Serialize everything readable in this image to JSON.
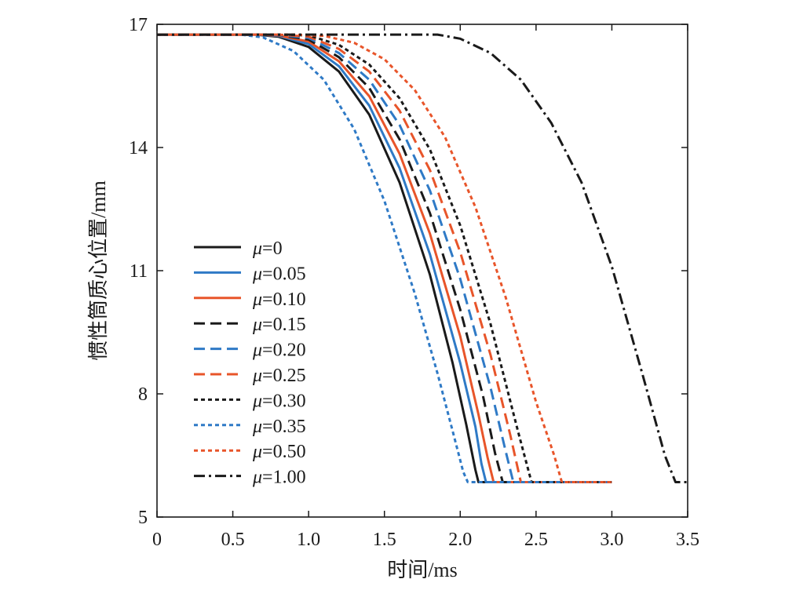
{
  "chart_data": {
    "type": "line",
    "title": "",
    "xlabel": "时间/ms",
    "ylabel": "惯性筒质心位置/mm",
    "xlim": [
      0,
      3.5
    ],
    "ylim": [
      5,
      17
    ],
    "xticks": [
      0,
      0.5,
      1.0,
      1.5,
      2.0,
      2.5,
      3.0,
      3.5
    ],
    "xtick_labels": [
      "0",
      "0.5",
      "1.0",
      "1.5",
      "2.0",
      "2.5",
      "3.0",
      "3.5"
    ],
    "yticks": [
      5,
      8,
      11,
      14,
      17
    ],
    "ytick_labels": [
      "5",
      "8",
      "11",
      "14",
      "17"
    ],
    "grid": false,
    "legend_position": "lower-left",
    "legend_prefix": "μ",
    "series": [
      {
        "name": "=0",
        "color": "#1a1a1a",
        "dash": "solid",
        "x": [
          0,
          0.65,
          0.8,
          1.0,
          1.2,
          1.4,
          1.6,
          1.8,
          1.95,
          2.04,
          2.1,
          2.12,
          3.0
        ],
        "y": [
          16.75,
          16.75,
          16.7,
          16.45,
          15.85,
          14.8,
          13.15,
          10.9,
          8.75,
          7.25,
          6.15,
          5.85,
          5.85
        ]
      },
      {
        "name": "=0.05",
        "color": "#2f7ac6",
        "dash": "solid",
        "x": [
          0,
          0.65,
          0.8,
          1.0,
          1.2,
          1.4,
          1.6,
          1.8,
          2.0,
          2.1,
          2.14,
          2.17,
          3.0
        ],
        "y": [
          16.75,
          16.75,
          16.72,
          16.52,
          15.98,
          15.02,
          13.5,
          11.4,
          8.75,
          7.2,
          6.3,
          5.85,
          5.85
        ]
      },
      {
        "name": "=0.10",
        "color": "#e8552a",
        "dash": "solid",
        "x": [
          0,
          0.65,
          0.8,
          1.0,
          1.2,
          1.4,
          1.6,
          1.8,
          2.0,
          2.12,
          2.18,
          2.22,
          3.0
        ],
        "y": [
          16.75,
          16.75,
          16.73,
          16.58,
          16.1,
          15.25,
          13.85,
          11.9,
          9.4,
          7.5,
          6.45,
          5.85,
          5.85
        ]
      },
      {
        "name": "=0.15",
        "color": "#1a1a1a",
        "dash": "longdash",
        "x": [
          0,
          0.65,
          0.8,
          1.0,
          1.2,
          1.4,
          1.6,
          1.8,
          2.0,
          2.15,
          2.23,
          2.28,
          3.0
        ],
        "y": [
          16.75,
          16.75,
          16.74,
          16.63,
          16.2,
          15.45,
          14.2,
          12.4,
          10.05,
          7.95,
          6.55,
          5.85,
          5.85
        ]
      },
      {
        "name": "=0.20",
        "color": "#2f7ac6",
        "dash": "longdash",
        "x": [
          0,
          0.65,
          0.8,
          1.0,
          1.2,
          1.4,
          1.6,
          1.8,
          2.0,
          2.2,
          2.3,
          2.35,
          3.0
        ],
        "y": [
          16.75,
          16.75,
          16.74,
          16.67,
          16.3,
          15.65,
          14.55,
          12.95,
          10.8,
          8.15,
          6.6,
          5.85,
          5.85
        ]
      },
      {
        "name": "=0.25",
        "color": "#e8552a",
        "dash": "longdash",
        "x": [
          0,
          0.65,
          0.8,
          1.0,
          1.2,
          1.4,
          1.6,
          1.8,
          2.0,
          2.2,
          2.33,
          2.4,
          3.0
        ],
        "y": [
          16.75,
          16.75,
          16.75,
          16.7,
          16.4,
          15.85,
          14.9,
          13.45,
          11.45,
          8.95,
          7.0,
          5.85,
          5.85
        ]
      },
      {
        "name": "=0.30",
        "color": "#1a1a1a",
        "dash": "shortdash",
        "x": [
          0,
          0.65,
          0.8,
          1.0,
          1.2,
          1.4,
          1.6,
          1.8,
          2.0,
          2.2,
          2.38,
          2.47,
          3.0
        ],
        "y": [
          16.75,
          16.75,
          16.75,
          16.73,
          16.5,
          16.02,
          15.2,
          13.95,
          12.1,
          9.7,
          7.1,
          5.85,
          5.85
        ]
      },
      {
        "name": "=0.35",
        "color": "#2f7ac6",
        "dash": "shortdash",
        "x": [
          0,
          0.55,
          0.7,
          0.9,
          1.1,
          1.3,
          1.5,
          1.7,
          1.85,
          1.96,
          2.02,
          2.05,
          3.0
        ],
        "y": [
          16.75,
          16.75,
          16.68,
          16.35,
          15.65,
          14.45,
          12.7,
          10.45,
          8.5,
          6.95,
          6.1,
          5.85,
          5.85
        ]
      },
      {
        "name": "=0.50",
        "color": "#e8552a",
        "dash": "shortdash",
        "x": [
          0,
          0.9,
          1.1,
          1.3,
          1.5,
          1.7,
          1.9,
          2.1,
          2.3,
          2.5,
          2.62,
          2.67,
          3.0
        ],
        "y": [
          16.75,
          16.75,
          16.72,
          16.55,
          16.15,
          15.4,
          14.25,
          12.55,
          10.35,
          7.8,
          6.5,
          5.85,
          5.85
        ]
      },
      {
        "name": "=1.00",
        "color": "#1a1a1a",
        "dash": "dashdot",
        "x": [
          0,
          1.85,
          2.0,
          2.2,
          2.4,
          2.6,
          2.8,
          3.0,
          3.2,
          3.35,
          3.42,
          3.5
        ],
        "y": [
          16.75,
          16.75,
          16.65,
          16.3,
          15.65,
          14.6,
          13.15,
          11.1,
          8.5,
          6.5,
          5.85,
          5.85
        ]
      }
    ]
  }
}
